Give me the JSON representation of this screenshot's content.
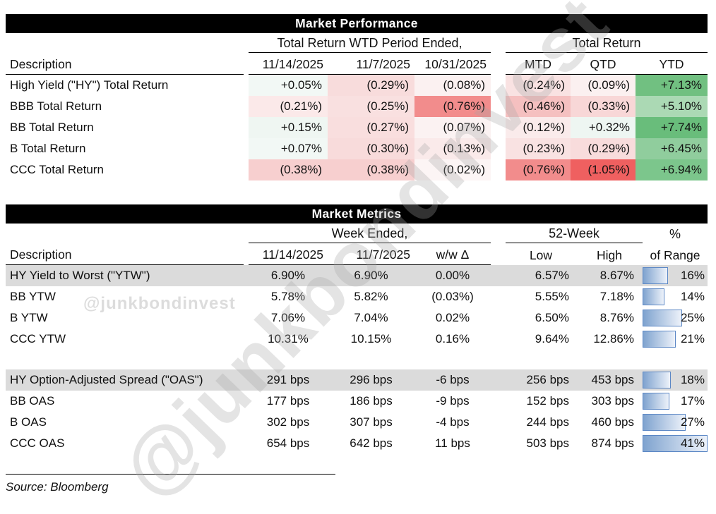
{
  "watermark": {
    "handle": "@junkbondinvest"
  },
  "source_note": "Source: Bloomberg",
  "colors": {
    "row_shade": "#DBDBDB",
    "bar_border": "#5B87C5",
    "bar_gradient_from": "#7FA3CF",
    "bar_gradient_to": "#EDF2FA",
    "strong_red": "#F28C8C",
    "strongest_red": "#EF6060",
    "strong_green": "#69BD7B",
    "header_bar": "#000000"
  },
  "chart_data": [
    {
      "type": "table",
      "title": "Market Performance",
      "desc_header": "Description",
      "col_groups": [
        "Total Return WTD Period Ended,",
        "Total Return"
      ],
      "columns": [
        "11/14/2025",
        "11/7/2025",
        "10/31/2025",
        "MTD",
        "QTD",
        "YTD"
      ],
      "rows": [
        {
          "label": "High Yield (\"HY\") Total Return",
          "values": [
            "+0.05%",
            "(0.29%)",
            "(0.08%)",
            "(0.24%)",
            "(0.09%)",
            "+7.13%"
          ],
          "cell_colors": [
            "#F2F8F5",
            "#F8DCDC",
            "#FBF1F1",
            "#F9E2E2",
            "#FBF0F0",
            "#71C081"
          ]
        },
        {
          "label": "BBB Total Return",
          "values": [
            "(0.21%)",
            "(0.25%)",
            "(0.76%)",
            "(0.46%)",
            "(0.33%)",
            "+5.10%"
          ],
          "cell_colors": [
            "#FBE9E9",
            "#F9E0E0",
            "#F28C8C",
            "#F5C0C0",
            "#F8D7D7",
            "#ABD9B4"
          ]
        },
        {
          "label": "BB Total Return",
          "values": [
            "+0.15%",
            "(0.27%)",
            "(0.07%)",
            "(0.12%)",
            "+0.32%",
            "+7.74%"
          ],
          "cell_colors": [
            "#EFF6F2",
            "#F9DEDE",
            "#FBF2F2",
            "#FAEBEB",
            "#EEF6F2",
            "#69BD7B"
          ]
        },
        {
          "label": "B Total Return",
          "values": [
            "+0.07%",
            "(0.30%)",
            "(0.13%)",
            "(0.23%)",
            "(0.29%)",
            "+6.45%"
          ],
          "cell_colors": [
            "#F2F8F5",
            "#F8DBDB",
            "#FAEAEA",
            "#F9E2E2",
            "#F8DCDC",
            "#90CD9D"
          ]
        },
        {
          "label": "CCC Total Return",
          "values": [
            "(0.38%)",
            "(0.38%)",
            "(0.02%)",
            "(0.76%)",
            "(1.05%)",
            "+6.94%"
          ],
          "cell_colors": [
            "#F7CFCF",
            "#F7CFCF",
            "#FCF5F5",
            "#F28C8C",
            "#EF6060",
            "#7CC68C"
          ]
        }
      ]
    },
    {
      "type": "table",
      "title": "Market Metrics",
      "desc_header": "Description",
      "col_groups": [
        "Week Ended,",
        "52-Week",
        "%"
      ],
      "columns": [
        "11/14/2025",
        "11/7/2025",
        "w/w Δ",
        "Low",
        "High",
        "of Range"
      ],
      "bar_scale_max": 41,
      "rows": [
        {
          "label": "HY Yield to Worst (\"YTW\")",
          "values": [
            "6.90%",
            "6.90%",
            "0.00%",
            "6.57%",
            "8.67%",
            "16%"
          ],
          "bar": 16,
          "shaded": true
        },
        {
          "label": "BB YTW",
          "values": [
            "5.78%",
            "5.82%",
            "(0.03%)",
            "5.55%",
            "7.18%",
            "14%"
          ],
          "bar": 14,
          "shaded": false
        },
        {
          "label": "B YTW",
          "values": [
            "7.06%",
            "7.04%",
            "0.02%",
            "6.50%",
            "8.76%",
            "25%"
          ],
          "bar": 25,
          "shaded": false
        },
        {
          "label": "CCC YTW",
          "values": [
            "10.31%",
            "10.15%",
            "0.16%",
            "9.64%",
            "12.86%",
            "21%"
          ],
          "bar": 21,
          "shaded": false
        },
        {
          "label": "HY Option-Adjusted Spread (\"OAS\")",
          "values": [
            "291 bps",
            "296 bps",
            "-6 bps",
            "256 bps",
            "453 bps",
            "18%"
          ],
          "bar": 18,
          "shaded": true
        },
        {
          "label": "BB OAS",
          "values": [
            "177 bps",
            "186 bps",
            "-9 bps",
            "152 bps",
            "303 bps",
            "17%"
          ],
          "bar": 17,
          "shaded": false
        },
        {
          "label": "B OAS",
          "values": [
            "302 bps",
            "307 bps",
            "-4 bps",
            "244 bps",
            "460 bps",
            "27%"
          ],
          "bar": 27,
          "shaded": false
        },
        {
          "label": "CCC OAS",
          "values": [
            "654 bps",
            "642 bps",
            "11 bps",
            "503 bps",
            "874 bps",
            "41%"
          ],
          "bar": 41,
          "shaded": false
        }
      ]
    }
  ]
}
